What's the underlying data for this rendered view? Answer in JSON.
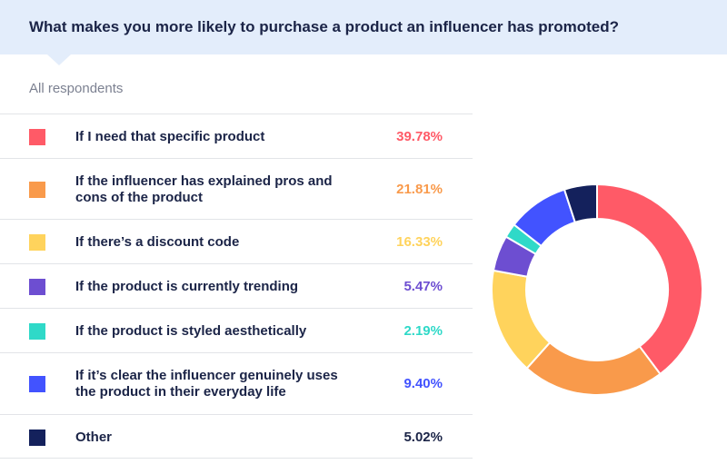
{
  "title": "What makes you more likely to purchase a product an influencer has promoted?",
  "subtitle": "All respondents",
  "colors": {
    "header_bg": "#e3edfb",
    "text": "#1b2447",
    "muted": "#7c8191"
  },
  "chart_data": {
    "type": "pie",
    "variant": "donut",
    "title": "What makes you more likely to purchase a product an influencer has promoted?",
    "subtitle": "All respondents",
    "legend_position": "left",
    "categories": [
      "If I need that specific product",
      "If the influencer has explained pros and cons of the product",
      "If there’s a discount code",
      "If the product is currently trending",
      "If the product is styled aesthetically",
      "If it’s clear the influencer genuinely uses the product in their everyday life",
      "Other"
    ],
    "values": [
      39.78,
      21.81,
      16.33,
      5.47,
      2.19,
      9.4,
      5.02
    ],
    "value_labels": [
      "39.78%",
      "21.81%",
      "16.33%",
      "5.47%",
      "2.19%",
      "9.40%",
      "5.02%"
    ],
    "colors": [
      "#ff5a67",
      "#f99a4b",
      "#ffd35c",
      "#6d4ed1",
      "#2fd9c8",
      "#4253ff",
      "#14215c"
    ],
    "label_colors": [
      "#ff5a67",
      "#f99a4b",
      "#ffd35c",
      "#6d4ed1",
      "#2fd9c8",
      "#4253ff",
      "#1b2447"
    ]
  }
}
